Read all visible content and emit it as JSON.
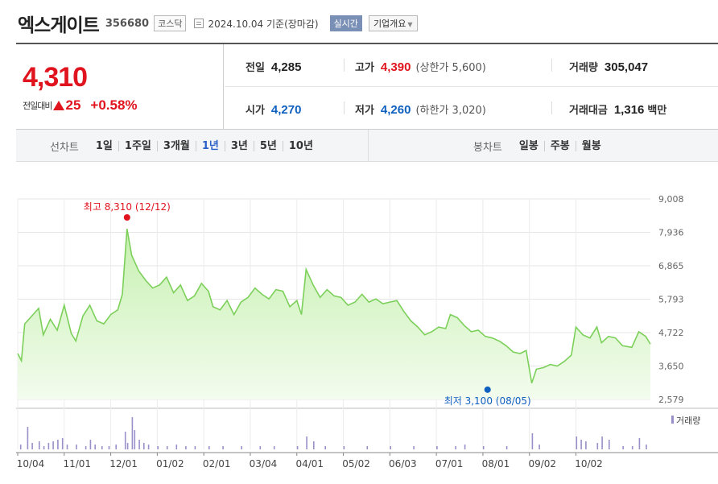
{
  "header": {
    "name": "엑스게이트",
    "code": "356680",
    "market": "코스닥",
    "date": "2024.10.04 기준(장마감)",
    "realtime": "실시간",
    "corp_info": "기업개요"
  },
  "summary": {
    "price": "4,310",
    "change_label": "전일대비",
    "change_value": "25",
    "change_pct": "+0.58%",
    "stats": {
      "prev_label": "전일",
      "prev": "4,285",
      "high_label": "고가",
      "high": "4,390",
      "upper_limit": "(상한가 5,600)",
      "volume_label": "거래량",
      "volume": "305,047",
      "open_label": "시가",
      "open": "4,270",
      "low_label": "저가",
      "low": "4,260",
      "lower_limit": "(하한가 3,020)",
      "amount_label": "거래대금",
      "amount": "1,316",
      "amount_unit": "백만"
    }
  },
  "tabs": {
    "line_title": "선차트",
    "line_tabs": [
      "1일",
      "1주일",
      "3개월",
      "1년",
      "3년",
      "5년",
      "10년"
    ],
    "active": "1년",
    "candle_title": "봉차트",
    "candle_tabs": [
      "일봉",
      "주봉",
      "월봉"
    ]
  },
  "colors": {
    "up": "#e0141e",
    "down": "#1060c0",
    "line": "#7cd05a",
    "volume": "#9a8fc8"
  },
  "chart_data": {
    "type": "area",
    "x_labels": [
      "10/04",
      "11/01",
      "12/01",
      "01/02",
      "02/01",
      "03/04",
      "04/01",
      "05/02",
      "06/03",
      "07/01",
      "08/01",
      "09/02",
      "10/02"
    ],
    "y_ticks": [
      "9,008",
      "7,936",
      "6,865",
      "5,793",
      "4,722",
      "3,650",
      "2,579"
    ],
    "ylim": [
      2579,
      9008
    ],
    "grid": true,
    "max_annotation": "최고 8,310 (12/12)",
    "min_annotation": "최저 3,100 (08/05)",
    "max_point": {
      "month_pos": 2.35,
      "value": 8310
    },
    "min_point": {
      "month_pos": 10.1,
      "value": 3100
    },
    "volume_label": "거래량",
    "series": [
      {
        "values": [
          [
            0,
            4050
          ],
          [
            0.08,
            3820
          ],
          [
            0.15,
            5000
          ],
          [
            0.3,
            5250
          ],
          [
            0.45,
            5500
          ],
          [
            0.55,
            4650
          ],
          [
            0.7,
            5150
          ],
          [
            0.85,
            4800
          ],
          [
            1.0,
            5600
          ],
          [
            1.15,
            4700
          ],
          [
            1.25,
            4450
          ],
          [
            1.4,
            5250
          ],
          [
            1.55,
            5600
          ],
          [
            1.7,
            5100
          ],
          [
            1.85,
            5000
          ],
          [
            2.0,
            5300
          ],
          [
            2.15,
            5450
          ],
          [
            2.25,
            5950
          ],
          [
            2.35,
            8050
          ],
          [
            2.45,
            7200
          ],
          [
            2.6,
            6700
          ],
          [
            2.75,
            6400
          ],
          [
            2.9,
            6150
          ],
          [
            3.05,
            6250
          ],
          [
            3.2,
            6500
          ],
          [
            3.35,
            6000
          ],
          [
            3.5,
            6250
          ],
          [
            3.65,
            5750
          ],
          [
            3.8,
            5900
          ],
          [
            3.95,
            6300
          ],
          [
            4.1,
            6050
          ],
          [
            4.2,
            5550
          ],
          [
            4.35,
            5450
          ],
          [
            4.5,
            5750
          ],
          [
            4.65,
            5300
          ],
          [
            4.8,
            5700
          ],
          [
            4.95,
            5850
          ],
          [
            5.1,
            6150
          ],
          [
            5.25,
            5950
          ],
          [
            5.4,
            5800
          ],
          [
            5.55,
            6100
          ],
          [
            5.7,
            6050
          ],
          [
            5.85,
            5550
          ],
          [
            6.0,
            5750
          ],
          [
            6.1,
            5300
          ],
          [
            6.2,
            6750
          ],
          [
            6.35,
            6250
          ],
          [
            6.5,
            5850
          ],
          [
            6.65,
            6100
          ],
          [
            6.8,
            5900
          ],
          [
            6.95,
            5850
          ],
          [
            7.1,
            5600
          ],
          [
            7.25,
            5700
          ],
          [
            7.4,
            5950
          ],
          [
            7.55,
            5700
          ],
          [
            7.7,
            5800
          ],
          [
            7.85,
            5650
          ],
          [
            8.0,
            5700
          ],
          [
            8.15,
            5750
          ],
          [
            8.3,
            5400
          ],
          [
            8.45,
            5100
          ],
          [
            8.6,
            4900
          ],
          [
            8.75,
            4650
          ],
          [
            8.9,
            4750
          ],
          [
            9.05,
            4900
          ],
          [
            9.2,
            4850
          ],
          [
            9.3,
            5300
          ],
          [
            9.45,
            5200
          ],
          [
            9.6,
            4950
          ],
          [
            9.75,
            4750
          ],
          [
            9.9,
            4800
          ],
          [
            10.05,
            4600
          ],
          [
            10.2,
            4550
          ],
          [
            10.35,
            4450
          ],
          [
            10.5,
            4300
          ],
          [
            10.65,
            4100
          ],
          [
            10.8,
            4050
          ],
          [
            10.93,
            4150
          ],
          [
            11.05,
            3100
          ],
          [
            11.15,
            3550
          ],
          [
            11.3,
            3600
          ],
          [
            11.45,
            3700
          ],
          [
            11.6,
            3650
          ],
          [
            11.75,
            3800
          ],
          [
            11.9,
            4000
          ],
          [
            12.0,
            4900
          ],
          [
            12.15,
            4650
          ],
          [
            12.3,
            4550
          ],
          [
            12.45,
            4900
          ],
          [
            12.55,
            4400
          ],
          [
            12.7,
            4600
          ],
          [
            12.85,
            4550
          ],
          [
            13.0,
            4300
          ],
          [
            13.2,
            4250
          ],
          [
            13.35,
            4750
          ],
          [
            13.5,
            4600
          ],
          [
            13.6,
            4350
          ]
        ]
      }
    ],
    "volume": [
      [
        0.05,
        0.15
      ],
      [
        0.2,
        0.7
      ],
      [
        0.3,
        0.2
      ],
      [
        0.45,
        0.25
      ],
      [
        0.55,
        0.1
      ],
      [
        0.65,
        0.2
      ],
      [
        0.75,
        0.25
      ],
      [
        0.85,
        0.3
      ],
      [
        0.95,
        0.35
      ],
      [
        1.05,
        0.15
      ],
      [
        1.25,
        0.15
      ],
      [
        1.45,
        0.1
      ],
      [
        1.55,
        0.3
      ],
      [
        1.65,
        0.15
      ],
      [
        1.8,
        0.1
      ],
      [
        1.95,
        0.1
      ],
      [
        2.1,
        0.15
      ],
      [
        2.3,
        0.55
      ],
      [
        2.35,
        0.2
      ],
      [
        2.45,
        1.0
      ],
      [
        2.5,
        0.6
      ],
      [
        2.6,
        0.3
      ],
      [
        2.7,
        0.2
      ],
      [
        2.8,
        0.15
      ],
      [
        3.0,
        0.1
      ],
      [
        3.2,
        0.1
      ],
      [
        3.4,
        0.15
      ],
      [
        3.6,
        0.1
      ],
      [
        3.8,
        0.1
      ],
      [
        4.1,
        0.1
      ],
      [
        4.4,
        0.1
      ],
      [
        4.8,
        0.1
      ],
      [
        5.2,
        0.1
      ],
      [
        5.5,
        0.1
      ],
      [
        6.0,
        0.1
      ],
      [
        6.2,
        0.4
      ],
      [
        6.35,
        0.25
      ],
      [
        6.6,
        0.1
      ],
      [
        7.0,
        0.1
      ],
      [
        7.5,
        0.1
      ],
      [
        8.0,
        0.1
      ],
      [
        8.5,
        0.1
      ],
      [
        9.0,
        0.1
      ],
      [
        9.4,
        0.1
      ],
      [
        9.6,
        0.15
      ],
      [
        10.0,
        0.1
      ],
      [
        10.5,
        0.1
      ],
      [
        11.05,
        0.5
      ],
      [
        11.2,
        0.15
      ],
      [
        12.0,
        0.4
      ],
      [
        12.1,
        0.3
      ],
      [
        12.2,
        0.25
      ],
      [
        12.45,
        0.2
      ],
      [
        12.55,
        0.4
      ],
      [
        12.7,
        0.3
      ],
      [
        13.0,
        0.1
      ],
      [
        13.2,
        0.1
      ],
      [
        13.35,
        0.35
      ],
      [
        13.5,
        0.15
      ]
    ]
  }
}
